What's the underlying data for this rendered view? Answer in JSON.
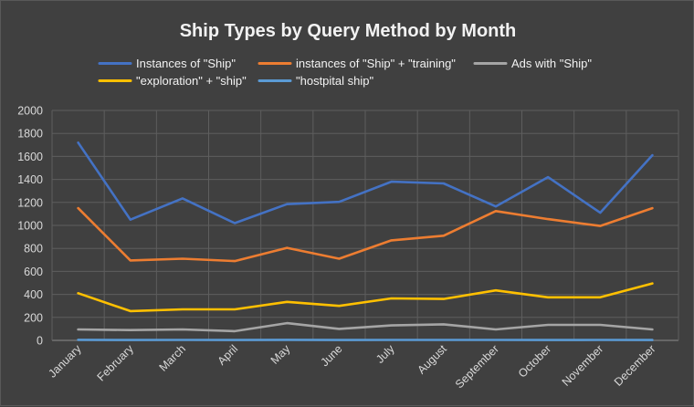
{
  "chart_data": {
    "type": "line",
    "title": "Ship Types by Query Method by Month",
    "xlabel": "",
    "ylabel": "",
    "categories": [
      "January",
      "February",
      "March",
      "April",
      "May",
      "June",
      "July",
      "August",
      "September",
      "October",
      "November",
      "December"
    ],
    "ylim": [
      0,
      2000
    ],
    "yticks": [
      0,
      200,
      400,
      600,
      800,
      1000,
      1200,
      1400,
      1600,
      1800,
      2000
    ],
    "grid": true,
    "legend_position": "top",
    "series": [
      {
        "name": "Instances of \"Ship\"",
        "color": "#4472C4",
        "values": [
          1720,
          1050,
          1235,
          1020,
          1185,
          1205,
          1380,
          1365,
          1165,
          1420,
          1110,
          1610
        ]
      },
      {
        "name": "instances of \"Ship\" + \"training\"",
        "color": "#ED7D31",
        "values": [
          1150,
          695,
          710,
          690,
          805,
          710,
          870,
          910,
          1125,
          1055,
          995,
          1150
        ]
      },
      {
        "name": "Ads with \"Ship\"",
        "color": "#A5A5A5",
        "values": [
          95,
          90,
          95,
          80,
          150,
          100,
          130,
          140,
          95,
          135,
          135,
          95
        ]
      },
      {
        "name": "\"exploration\" + \"ship\"",
        "color": "#FFC000",
        "values": [
          410,
          255,
          270,
          270,
          335,
          300,
          365,
          360,
          435,
          375,
          375,
          495
        ]
      },
      {
        "name": "\"hostpital ship\"",
        "color": "#5B9BD5",
        "values": [
          5,
          3,
          4,
          3,
          5,
          3,
          4,
          4,
          4,
          3,
          4,
          3
        ]
      }
    ]
  }
}
